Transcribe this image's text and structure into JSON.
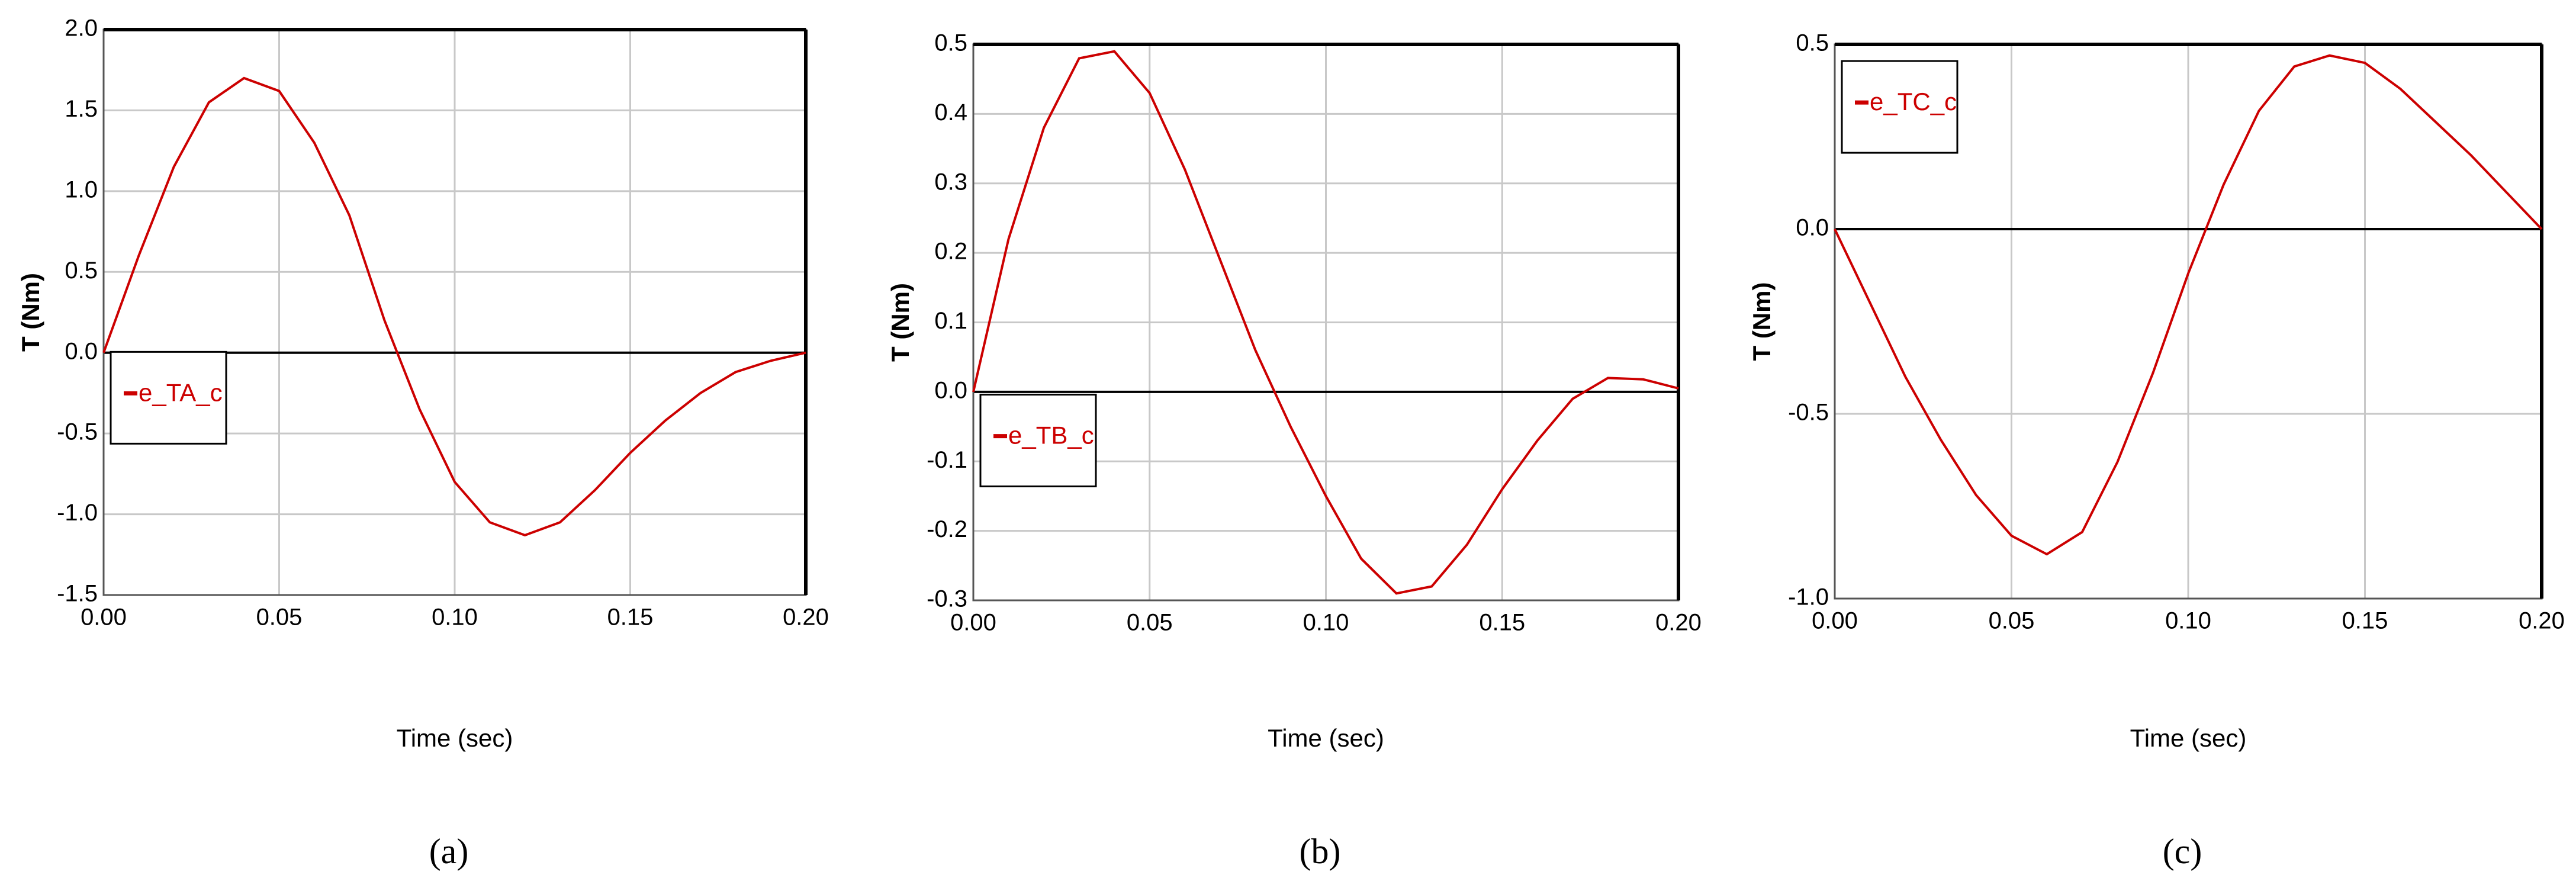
{
  "chart_data": [
    {
      "type": "line",
      "caption": "(a)",
      "xlabel": "Time (sec)",
      "ylabel": "T (Nm)",
      "x": [
        0,
        0.01,
        0.02,
        0.03,
        0.04,
        0.05,
        0.06,
        0.07,
        0.08,
        0.09,
        0.1,
        0.11,
        0.12,
        0.13,
        0.14,
        0.15,
        0.16,
        0.17,
        0.18,
        0.19,
        0.2
      ],
      "series": [
        {
          "name": "e_TA_c",
          "color": "#cc0000",
          "values": [
            0,
            0.6,
            1.15,
            1.55,
            1.7,
            1.62,
            1.3,
            0.85,
            0.2,
            -0.35,
            -0.8,
            -1.05,
            -1.13,
            -1.05,
            -0.85,
            -0.62,
            -0.42,
            -0.25,
            -0.12,
            -0.05,
            0
          ]
        }
      ],
      "xlim": [
        0,
        0.2
      ],
      "xticks": [
        {
          "value": 0,
          "label": "0.00"
        },
        0.05,
        {
          "value": 0.1,
          "label": "0.10"
        },
        0.15,
        {
          "value": 0.2,
          "label": "0.20"
        }
      ],
      "ylim": [
        -1.5,
        2
      ],
      "yticks": [
        {
          "value": 2,
          "label": "2.0"
        },
        1.5,
        {
          "value": 1,
          "label": "1.0"
        },
        0.5,
        {
          "value": 0,
          "label": "0.0"
        },
        -0.5,
        {
          "value": -1,
          "label": "-1.0"
        },
        -1.5
      ],
      "grid": true
    },
    {
      "type": "line",
      "caption": "(b)",
      "xlabel": "Time (sec)",
      "ylabel": "T (Nm)",
      "x": [
        0,
        0.01,
        0.02,
        0.03,
        0.04,
        0.05,
        0.06,
        0.07,
        0.08,
        0.09,
        0.1,
        0.11,
        0.12,
        0.13,
        0.14,
        0.15,
        0.16,
        0.17,
        0.18,
        0.19,
        0.2
      ],
      "series": [
        {
          "name": "e_TB_c",
          "color": "#cc0000",
          "values": [
            0,
            0.22,
            0.38,
            0.48,
            0.49,
            0.43,
            0.32,
            0.19,
            0.06,
            -0.05,
            -0.15,
            -0.24,
            -0.29,
            -0.28,
            -0.22,
            -0.14,
            -0.07,
            -0.01,
            0.02,
            0.018,
            0.005
          ]
        }
      ],
      "xlim": [
        0,
        0.2
      ],
      "xticks": [
        {
          "value": 0,
          "label": "0.00"
        },
        0.05,
        {
          "value": 0.1,
          "label": "0.10"
        },
        0.15,
        {
          "value": 0.2,
          "label": "0.20"
        }
      ],
      "ylim": [
        -0.3,
        0.5
      ],
      "yticks": [
        0.5,
        0.4,
        0.3,
        0.2,
        0.1,
        {
          "value": 0,
          "label": "0.0"
        },
        -0.1,
        -0.2,
        -0.3
      ],
      "grid": true
    },
    {
      "type": "line",
      "caption": "(c)",
      "xlabel": "Time (sec)",
      "ylabel": "T (Nm)",
      "x": [
        0,
        0.01,
        0.02,
        0.03,
        0.04,
        0.05,
        0.06,
        0.07,
        0.08,
        0.09,
        0.1,
        0.11,
        0.12,
        0.13,
        0.14,
        0.15,
        0.16,
        0.17,
        0.18,
        0.19,
        0.2
      ],
      "series": [
        {
          "name": "e_TC_c",
          "color": "#cc0000",
          "values": [
            0,
            -0.2,
            -0.4,
            -0.57,
            -0.72,
            -0.83,
            -0.88,
            -0.82,
            -0.63,
            -0.39,
            -0.12,
            0.12,
            0.32,
            0.44,
            0.47,
            0.45,
            0.38,
            0.29,
            0.2,
            0.1,
            0
          ]
        }
      ],
      "xlim": [
        0,
        0.2
      ],
      "xticks": [
        {
          "value": 0,
          "label": "0.00"
        },
        0.05,
        {
          "value": 0.1,
          "label": "0.10"
        },
        0.15,
        {
          "value": 0.2,
          "label": "0.20"
        }
      ],
      "ylim": [
        -1,
        0.5
      ],
      "yticks": [
        0.5,
        {
          "value": 0,
          "label": "0.0"
        },
        -0.5,
        {
          "value": -1,
          "label": "-1.0"
        }
      ],
      "grid": true
    }
  ]
}
